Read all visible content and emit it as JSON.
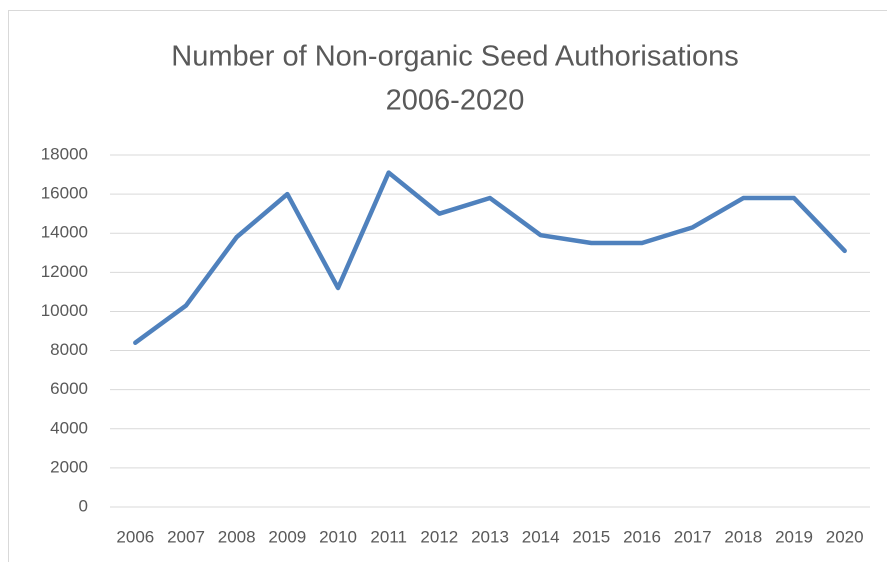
{
  "chart_data": {
    "type": "line",
    "title": [
      "Number of Non-organic Seed Authorisations",
      "2006-2020"
    ],
    "categories": [
      "2006",
      "2007",
      "2008",
      "2009",
      "2010",
      "2011",
      "2012",
      "2013",
      "2014",
      "2015",
      "2016",
      "2017",
      "2018",
      "2019",
      "2020"
    ],
    "series": [
      {
        "color": "#4f81bd",
        "values": [
          8400,
          10300,
          13800,
          16000,
          11200,
          17100,
          15000,
          15800,
          13900,
          13500,
          13500,
          14300,
          15800,
          15800,
          13100
        ]
      }
    ],
    "ylim": [
      0,
      18000
    ],
    "yticks": [
      0,
      2000,
      4000,
      6000,
      8000,
      10000,
      12000,
      14000,
      16000,
      18000
    ],
    "grid": true
  }
}
